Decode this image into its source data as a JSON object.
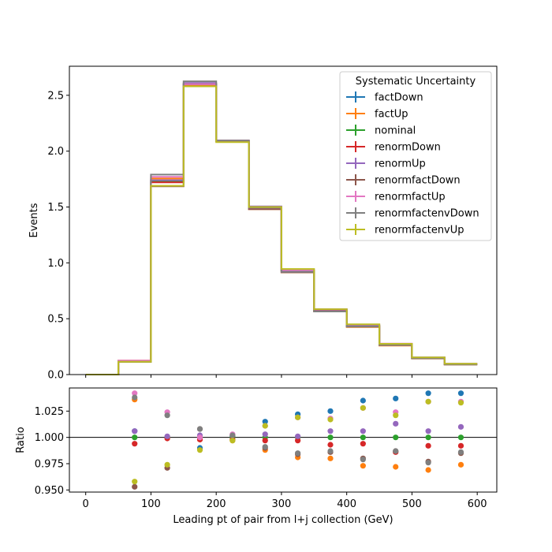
{
  "chart_data": [
    {
      "type": "step",
      "xlabel": "",
      "ylabel": "Events",
      "xlim": [
        -25,
        630
      ],
      "ylim": [
        0,
        2.76
      ],
      "x_ticks": [
        0,
        100,
        200,
        300,
        400,
        500,
        600
      ],
      "y_ticks": [
        0.0,
        0.5,
        1.0,
        1.5,
        2.0,
        2.5
      ],
      "y_tick_labels": [
        "0.0",
        "0.5",
        "1.0",
        "1.5",
        "2.0",
        "2.5"
      ],
      "bin_edges": [
        0,
        50,
        100,
        150,
        200,
        250,
        300,
        350,
        400,
        450,
        500,
        550,
        600
      ],
      "legend": {
        "title": "Systematic Uncertainty",
        "placement": "top-right"
      },
      "series": [
        {
          "name": "factDown",
          "color": "#1f77b4",
          "values": [
            0.0,
            0.12,
            1.74,
            2.595,
            2.09,
            1.49,
            0.935,
            0.585,
            0.44,
            0.275,
            0.153,
            0.097
          ]
        },
        {
          "name": "factUp",
          "color": "#ff7f0e",
          "values": [
            0.0,
            0.125,
            1.755,
            2.585,
            2.085,
            1.48,
            0.915,
            0.565,
            0.425,
            0.26,
            0.144,
            0.09
          ]
        },
        {
          "name": "nominal",
          "color": "#2ca02c",
          "values": [
            0.0,
            0.12,
            1.73,
            2.6,
            2.09,
            1.5,
            0.93,
            0.575,
            0.44,
            0.27,
            0.148,
            0.094
          ]
        },
        {
          "name": "renormDown",
          "color": "#d62728",
          "values": [
            0.0,
            0.12,
            1.72,
            2.6,
            2.09,
            1.495,
            0.928,
            0.57,
            0.435,
            0.266,
            0.147,
            0.093
          ]
        },
        {
          "name": "renormUp",
          "color": "#9467bd",
          "values": [
            0.0,
            0.122,
            1.74,
            2.61,
            2.095,
            1.505,
            0.93,
            0.58,
            0.442,
            0.275,
            0.149,
            0.095
          ]
        },
        {
          "name": "renormfactDown",
          "color": "#8c564b",
          "values": [
            0.0,
            0.114,
            1.685,
            2.6,
            2.095,
            1.48,
            0.915,
            0.565,
            0.43,
            0.265,
            0.145,
            0.09
          ]
        },
        {
          "name": "renormfactUp",
          "color": "#e377c2",
          "values": [
            0.0,
            0.125,
            1.77,
            2.6,
            2.095,
            1.495,
            0.935,
            0.585,
            0.448,
            0.277,
            0.153,
            0.097
          ]
        },
        {
          "name": "renormfactenvDown",
          "color": "#7f7f7f",
          "values": [
            0.0,
            0.115,
            1.79,
            2.625,
            2.095,
            1.495,
            0.92,
            0.565,
            0.43,
            0.264,
            0.146,
            0.091
          ]
        },
        {
          "name": "renormfactenvUp",
          "color": "#bcbd22",
          "values": [
            0.0,
            0.115,
            1.69,
            2.58,
            2.08,
            1.5,
            0.945,
            0.585,
            0.45,
            0.275,
            0.153,
            0.097
          ]
        }
      ]
    },
    {
      "type": "scatter",
      "xlabel": "Leading pt of pair from l+j collection (GeV)",
      "ylabel": "Ratio",
      "xlim": [
        -25,
        630
      ],
      "ylim": [
        0.948,
        1.047
      ],
      "x_ticks": [
        0,
        100,
        200,
        300,
        400,
        500,
        600
      ],
      "y_ticks": [
        0.95,
        0.975,
        1.0,
        1.025
      ],
      "y_tick_labels": [
        "0.950",
        "0.975",
        "1.000",
        "1.025"
      ],
      "reference_line": 1.0,
      "x": [
        75,
        125,
        175,
        225,
        275,
        325,
        375,
        425,
        475,
        525,
        575
      ],
      "series": [
        {
          "name": "factDown",
          "color": "#1f77b4",
          "values": [
            1.006,
            1.0,
            0.99,
            1.001,
            1.015,
            1.022,
            1.025,
            1.035,
            1.037,
            1.042,
            1.042
          ]
        },
        {
          "name": "factUp",
          "color": "#ff7f0e",
          "values": [
            1.036,
            1.0,
            0.998,
            0.997,
            0.988,
            0.981,
            0.98,
            0.973,
            0.972,
            0.969,
            0.974
          ]
        },
        {
          "name": "nominal",
          "color": "#2ca02c",
          "values": [
            1.0,
            1.0,
            1.0,
            1.0,
            1.0,
            1.0,
            1.0,
            1.0,
            1.0,
            1.0,
            1.0
          ]
        },
        {
          "name": "renormDown",
          "color": "#d62728",
          "values": [
            0.994,
            0.999,
            0.998,
            0.998,
            0.997,
            0.997,
            0.993,
            0.994,
            0.986,
            0.992,
            0.992
          ]
        },
        {
          "name": "renormUp",
          "color": "#9467bd",
          "values": [
            1.006,
            1.001,
            1.002,
            1.002,
            1.003,
            1.001,
            1.006,
            1.006,
            1.013,
            1.006,
            1.01
          ]
        },
        {
          "name": "renormfactDown",
          "color": "#8c564b",
          "values": [
            0.953,
            0.971,
            1.008,
            1.002,
            0.99,
            0.984,
            0.986,
            0.98,
            0.987,
            0.977,
            0.985
          ]
        },
        {
          "name": "renormfactUp",
          "color": "#e377c2",
          "values": [
            1.042,
            1.024,
            1.0,
            1.003,
            1.011,
            1.019,
            1.018,
            1.028,
            1.024,
            1.034,
            1.034
          ]
        },
        {
          "name": "renormfactenvDown",
          "color": "#7f7f7f",
          "values": [
            1.038,
            1.021,
            1.008,
            1.002,
            0.991,
            0.985,
            0.987,
            0.979,
            0.987,
            0.976,
            0.986
          ]
        },
        {
          "name": "renormfactenvUp",
          "color": "#bcbd22",
          "values": [
            0.958,
            0.974,
            0.988,
            0.997,
            1.011,
            1.019,
            1.017,
            1.028,
            1.021,
            1.034,
            1.033
          ]
        }
      ]
    }
  ]
}
